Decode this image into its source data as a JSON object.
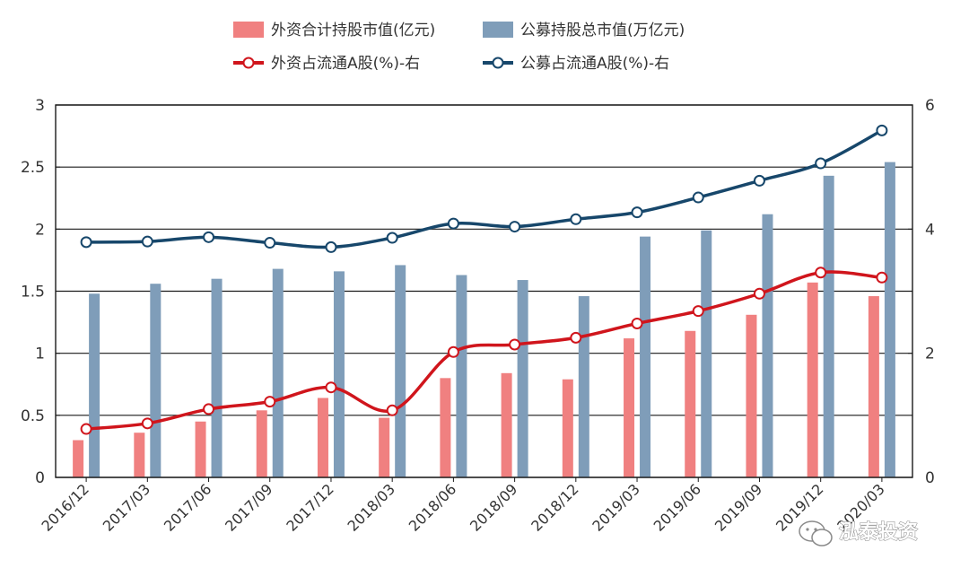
{
  "chart_data": {
    "type": "bar",
    "title": "",
    "xlabel": "",
    "ylabel": "",
    "categories": [
      "2016/12",
      "2017/03",
      "2017/06",
      "2017/09",
      "2017/12",
      "2018/03",
      "2018/06",
      "2018/09",
      "2018/12",
      "2019/03",
      "2019/06",
      "2019/09",
      "2019/12",
      "2020/03"
    ],
    "ylim": [
      0,
      3
    ],
    "y2lim": [
      0,
      6
    ],
    "yticks": [
      "0",
      "0.5",
      "1",
      "1.5",
      "2",
      "2.5",
      "3"
    ],
    "y2ticks": [
      "0",
      "2",
      "4",
      "6"
    ],
    "grid": true,
    "legend_position": "top",
    "series": [
      {
        "name": "外资合计持股市值(亿元)",
        "type": "bar",
        "axis": "left",
        "color": "#f08080",
        "values": [
          0.3,
          0.36,
          0.45,
          0.54,
          0.64,
          0.48,
          0.8,
          0.84,
          0.79,
          1.12,
          1.18,
          1.31,
          1.57,
          1.46
        ]
      },
      {
        "name": "公募持股总市值(万亿元)",
        "type": "bar",
        "axis": "left",
        "color": "#7f9db9",
        "values": [
          1.48,
          1.56,
          1.6,
          1.68,
          1.66,
          1.71,
          1.63,
          1.59,
          1.46,
          1.94,
          1.99,
          2.12,
          2.43,
          2.54
        ]
      },
      {
        "name": "外资占流通A股(%)-右",
        "type": "line",
        "axis": "right",
        "color": "#d0151c",
        "values": [
          0.78,
          0.87,
          1.1,
          1.22,
          1.45,
          1.08,
          2.02,
          2.14,
          2.25,
          2.48,
          2.68,
          2.96,
          3.3,
          3.22
        ]
      },
      {
        "name": "公募占流通A股(%)-右",
        "type": "line",
        "axis": "right",
        "color": "#17476b",
        "values": [
          3.79,
          3.8,
          3.87,
          3.78,
          3.71,
          3.86,
          4.09,
          4.04,
          4.16,
          4.27,
          4.51,
          4.78,
          5.06,
          5.59
        ]
      }
    ]
  },
  "watermark": {
    "text": "泓泰投资",
    "icon": "wechat-icon"
  }
}
